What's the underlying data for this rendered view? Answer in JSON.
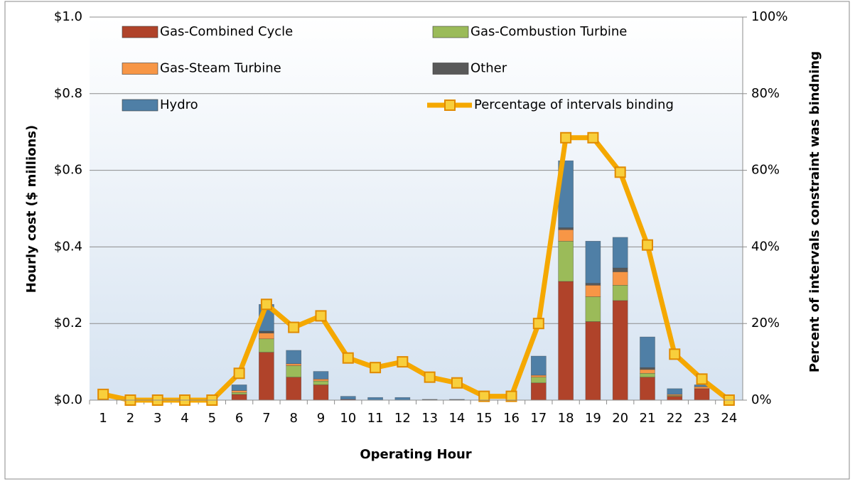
{
  "chart_data": {
    "type": "bar",
    "stacked": true,
    "x_axis_label": "Operating Hour",
    "y_axis_label": "Hourly cost ($ millions)",
    "y2_axis_label": "Percent of intervals constraint was bindning",
    "categories": [
      "1",
      "2",
      "3",
      "4",
      "5",
      "6",
      "7",
      "8",
      "9",
      "10",
      "11",
      "12",
      "13",
      "14",
      "15",
      "16",
      "17",
      "18",
      "19",
      "20",
      "21",
      "22",
      "23",
      "24"
    ],
    "series": [
      {
        "name": "Gas-Combined Cycle",
        "color": "#b0432a",
        "values": [
          0,
          0,
          0,
          0,
          0,
          0.015,
          0.125,
          0.06,
          0.04,
          0.002,
          0,
          0,
          0,
          0,
          0,
          0,
          0.045,
          0.31,
          0.205,
          0.26,
          0.06,
          0.01,
          0.03,
          0
        ]
      },
      {
        "name": "Gas-Combustion Turbine",
        "color": "#9bbb59",
        "values": [
          0,
          0,
          0,
          0,
          0,
          0.005,
          0.035,
          0.03,
          0.01,
          0,
          0,
          0,
          0,
          0,
          0,
          0,
          0.015,
          0.105,
          0.065,
          0.04,
          0.01,
          0.002,
          0,
          0
        ]
      },
      {
        "name": "Gas-Steam Turbine",
        "color": "#f79646",
        "values": [
          0,
          0,
          0,
          0,
          0,
          0.005,
          0.015,
          0.005,
          0.005,
          0,
          0,
          0,
          0,
          0,
          0,
          0,
          0.005,
          0.03,
          0.03,
          0.035,
          0.01,
          0.003,
          0.005,
          0
        ]
      },
      {
        "name": "Other",
        "color": "#595959",
        "values": [
          0,
          0,
          0,
          0,
          0,
          0,
          0.005,
          0,
          0,
          0,
          0,
          0,
          0.002,
          0.002,
          0,
          0,
          0,
          0.005,
          0.005,
          0.01,
          0.005,
          0,
          0,
          0
        ]
      },
      {
        "name": "Hydro",
        "color": "#4f7fa6",
        "values": [
          0,
          0,
          0,
          0,
          0,
          0.015,
          0.07,
          0.035,
          0.02,
          0.008,
          0.007,
          0.007,
          0,
          0,
          0,
          0,
          0.05,
          0.175,
          0.11,
          0.08,
          0.08,
          0.015,
          0.005,
          0
        ]
      },
      {
        "name": "Percentage of intervals binding",
        "color": "#f5a800",
        "type": "line",
        "axis": "y2",
        "values": [
          1.5,
          0,
          0,
          0,
          0,
          7,
          25,
          19,
          22,
          11,
          8.5,
          10,
          6,
          4.5,
          1,
          1,
          20,
          68.5,
          68.5,
          59.5,
          40.5,
          12,
          5.5,
          0
        ]
      }
    ],
    "ylim": [
      0,
      1.0
    ],
    "yticks": [
      {
        "value": 0,
        "label": "$0.0"
      },
      {
        "value": 0.2,
        "label": "$0.2"
      },
      {
        "value": 0.4,
        "label": "$0.4"
      },
      {
        "value": 0.6,
        "label": "$0.6"
      },
      {
        "value": 0.8,
        "label": "$0.8"
      },
      {
        "value": 1.0,
        "label": "$1.0"
      }
    ],
    "y2lim": [
      0,
      100
    ],
    "y2ticks": [
      {
        "value": 0,
        "label": "0%"
      },
      {
        "value": 20,
        "label": "20%"
      },
      {
        "value": 40,
        "label": "40%"
      },
      {
        "value": 60,
        "label": "60%"
      },
      {
        "value": 80,
        "label": "80%"
      },
      {
        "value": 100,
        "label": "100%"
      }
    ],
    "grid": true,
    "legend": "top"
  }
}
